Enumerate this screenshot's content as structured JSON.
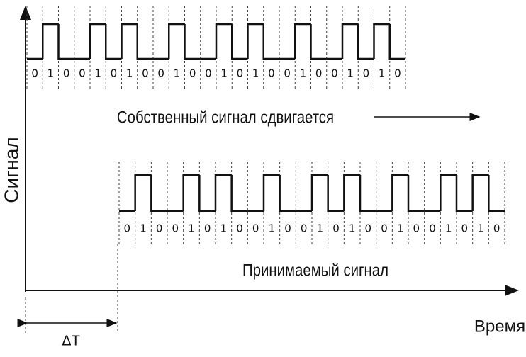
{
  "axis_labels": {
    "y": "Сигнал",
    "x": "Время"
  },
  "own_signal": {
    "caption": "Собственный сигнал сдвигается",
    "bits": [
      0,
      1,
      0,
      0,
      1,
      0,
      1,
      0,
      0,
      1,
      0,
      0,
      1,
      0,
      1,
      0,
      0,
      1,
      0,
      0,
      1,
      0,
      1,
      0
    ]
  },
  "received_signal": {
    "caption": "Принимаемый сигнал",
    "bits": [
      0,
      1,
      0,
      0,
      1,
      0,
      1,
      0,
      0,
      1,
      0,
      0,
      1,
      0,
      1,
      0,
      0,
      1,
      0,
      0,
      1,
      0,
      1,
      0
    ]
  },
  "delay_label": "ΔT"
}
